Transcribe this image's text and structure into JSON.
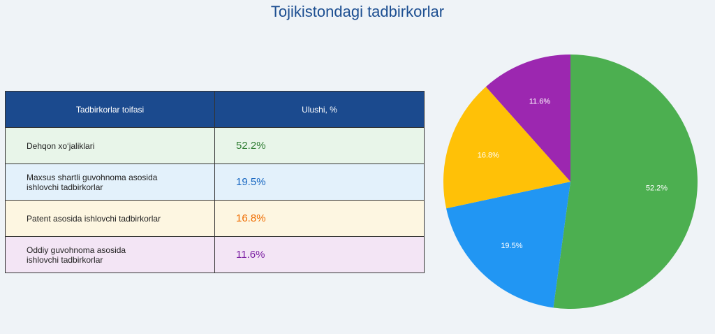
{
  "title": "Tojikistondagi tadbirkorlar",
  "table": {
    "headers": [
      "Tadbirkorlar toifasi",
      "Ulushi, %"
    ],
    "rows": [
      {
        "category": "Dehqon xo‘jaliklari",
        "value": "52.2%",
        "bg": "#e8f5e9",
        "color": "#2e7d32"
      },
      {
        "category": "Maxsus shartli guvohnoma asosida\nishlovchi tadbirkorlar",
        "value": "19.5%",
        "bg": "#e3f1fb",
        "color": "#1565c0"
      },
      {
        "category": "Patent asosida ishlovchi tadbirkorlar",
        "value": "16.8%",
        "bg": "#fdf6e1",
        "color": "#ef6c00"
      },
      {
        "category": "Oddiy guvohnoma asosida\nishlovchi tadbirkorlar",
        "value": "11.6%",
        "bg": "#f3e5f5",
        "color": "#7b1fa2"
      }
    ]
  },
  "chart_data": {
    "type": "pie",
    "title": "Tojikistondagi tadbirkorlar",
    "categories": [
      "Dehqon xo‘jaliklari",
      "Maxsus shartli guvohnoma asosida ishlovchi tadbirkorlar",
      "Patent asosida ishlovchi tadbirkorlar",
      "Oddiy guvohnoma asosida ishlovchi tadbirkorlar"
    ],
    "values": [
      52.2,
      19.5,
      16.8,
      11.6
    ],
    "labels": [
      "52.2%",
      "19.5%",
      "16.8%",
      "11.6%"
    ],
    "colors": [
      "#4caf50",
      "#2196f3",
      "#ffc107",
      "#9c27b0"
    ],
    "start": "top",
    "direction": "clockwise"
  }
}
